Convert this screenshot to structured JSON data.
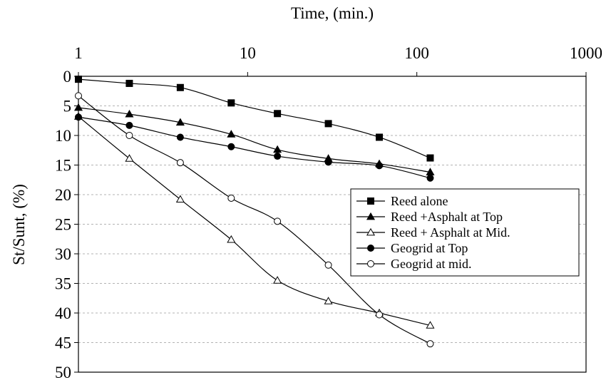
{
  "chart_data": {
    "type": "line",
    "xlabel": "Time, (min.)",
    "ylabel": "St/Sunt, (%)",
    "x_scale": "log",
    "xlim": [
      1,
      1000
    ],
    "ylim": [
      0,
      50
    ],
    "y_inverted": true,
    "grid": "horizontal dashed",
    "legend_position": "right",
    "x_ticks": [
      "1",
      "10",
      "100",
      "1000"
    ],
    "y_ticks": [
      "0",
      "5",
      "10",
      "15",
      "20",
      "25",
      "30",
      "35",
      "40",
      "45",
      "50"
    ],
    "series": [
      {
        "name": "Reed alone",
        "marker": "filled-square",
        "x": [
          1,
          2,
          4,
          8,
          15,
          30,
          60,
          120
        ],
        "y": [
          0.5,
          1.2,
          1.9,
          4.5,
          6.3,
          8.0,
          10.3,
          13.8
        ]
      },
      {
        "name": "Reed +Asphalt at Top",
        "marker": "filled-triangle",
        "x": [
          1,
          2,
          4,
          8,
          15,
          30,
          60,
          120
        ],
        "y": [
          5.3,
          6.4,
          7.8,
          9.8,
          12.4,
          13.9,
          14.8,
          16.2
        ]
      },
      {
        "name": "Reed + Asphalt at Mid.",
        "marker": "open-triangle",
        "x": [
          1,
          2,
          4,
          8,
          15,
          30,
          60,
          120
        ],
        "y": [
          6.8,
          13.9,
          20.8,
          27.6,
          34.5,
          38.0,
          40.0,
          42.1
        ]
      },
      {
        "name": "Geogrid at Top",
        "marker": "filled-circle",
        "x": [
          1,
          2,
          4,
          8,
          15,
          30,
          60,
          120
        ],
        "y": [
          6.9,
          8.3,
          10.3,
          11.9,
          13.5,
          14.5,
          15.1,
          17.2
        ]
      },
      {
        "name": "Geogrid at mid.",
        "marker": "open-circle",
        "x": [
          1,
          2,
          4,
          8,
          15,
          30,
          60,
          120
        ],
        "y": [
          3.3,
          10.0,
          14.6,
          20.6,
          24.5,
          31.9,
          40.3,
          45.2
        ]
      }
    ]
  }
}
